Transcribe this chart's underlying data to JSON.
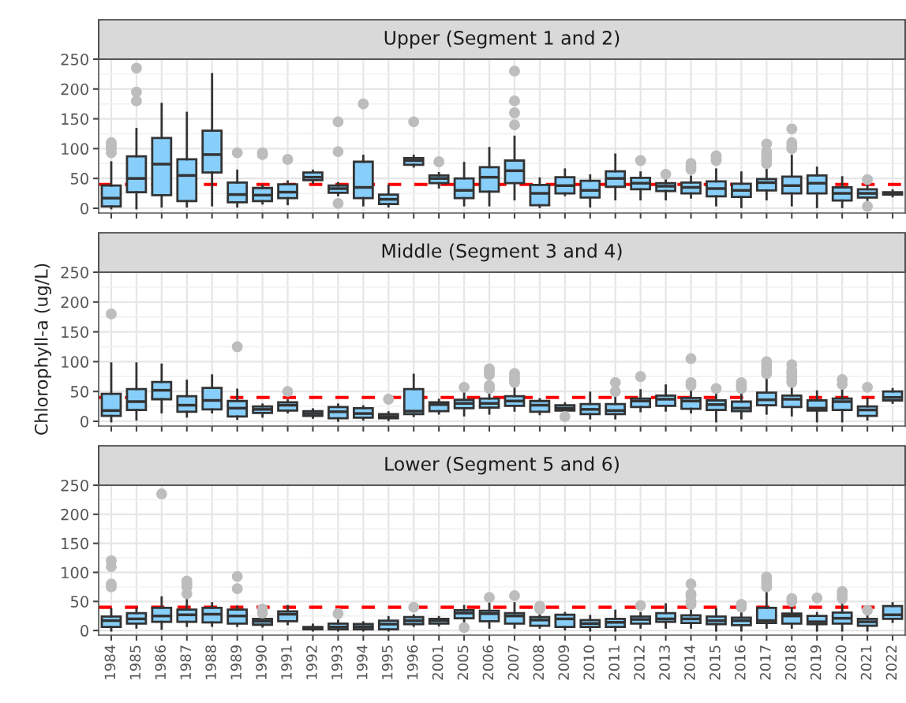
{
  "chart_data": [
    {
      "type": "box",
      "title": "Upper (Segment 1 and 2)",
      "categories": [
        "1984",
        "1985",
        "1986",
        "1987",
        "1988",
        "1989",
        "1990",
        "1991",
        "1992",
        "1993",
        "1994",
        "1995",
        "1996",
        "2001",
        "2005",
        "2006",
        "2007",
        "2008",
        "2009",
        "2010",
        "2011",
        "2012",
        "2013",
        "2014",
        "2015",
        "2016",
        "2017",
        "2018",
        "2019",
        "2020",
        "2021",
        "2022"
      ],
      "ylim": [
        -8,
        250
      ],
      "yticks": [
        0,
        50,
        100,
        150,
        200,
        250
      ],
      "grid": true,
      "tick_labels": "y",
      "ref_lines": [
        {
          "axis": "y",
          "value": 40,
          "label": null,
          "color": "#ff0000",
          "line_style": "dashed"
        }
      ],
      "series": [
        {
          "color": "#87cefa",
          "boxes": [
            {
              "low": 0,
              "q1": 3,
              "median": 17,
              "q3": 38,
              "high": 77,
              "outliers": [
                93,
                100,
                105,
                110
              ]
            },
            {
              "low": 0,
              "q1": 27,
              "median": 50,
              "q3": 87,
              "high": 133,
              "outliers": [
                180,
                195,
                235
              ]
            },
            {
              "low": 3,
              "q1": 22,
              "median": 74,
              "q3": 118,
              "high": 175
            },
            {
              "low": 3,
              "q1": 12,
              "median": 55,
              "q3": 82,
              "high": 160
            },
            {
              "low": 5,
              "q1": 60,
              "median": 90,
              "q3": 130,
              "high": 225
            },
            {
              "low": 3,
              "q1": 10,
              "median": 23,
              "q3": 43,
              "high": 63,
              "outliers": [
                93
              ]
            },
            {
              "low": 8,
              "q1": 12,
              "median": 22,
              "q3": 34,
              "high": 38,
              "outliers": [
                90,
                93
              ]
            },
            {
              "low": 7,
              "q1": 17,
              "median": 27,
              "q3": 40,
              "high": 45,
              "outliers": [
                82
              ]
            },
            {
              "low": 43,
              "q1": 47,
              "median": 52,
              "q3": 60,
              "high": 63
            },
            {
              "low": 22,
              "q1": 26,
              "median": 33,
              "q3": 38,
              "high": 42,
              "outliers": [
                8,
                95,
                145
              ]
            },
            {
              "low": 5,
              "q1": 17,
              "median": 35,
              "q3": 78,
              "high": 88,
              "outliers": [
                175
              ]
            },
            {
              "low": 3,
              "q1": 7,
              "median": 15,
              "q3": 23,
              "high": 38
            },
            {
              "low": 70,
              "q1": 73,
              "median": 80,
              "q3": 84,
              "high": 88,
              "outliers": [
                145
              ]
            },
            {
              "low": 35,
              "q1": 42,
              "median": 50,
              "q3": 55,
              "high": 59,
              "outliers": [
                78
              ]
            },
            {
              "low": 5,
              "q1": 17,
              "median": 30,
              "q3": 50,
              "high": 76
            },
            {
              "low": 5,
              "q1": 28,
              "median": 52,
              "q3": 69,
              "high": 101
            },
            {
              "low": 15,
              "q1": 42,
              "median": 63,
              "q3": 80,
              "high": 120,
              "outliers": [
                140,
                160,
                180,
                230
              ]
            },
            {
              "low": 2,
              "q1": 5,
              "median": 25,
              "q3": 39,
              "high": 50
            },
            {
              "low": 22,
              "q1": 25,
              "median": 38,
              "q3": 52,
              "high": 65
            },
            {
              "low": 3,
              "q1": 18,
              "median": 30,
              "q3": 46,
              "high": 55
            },
            {
              "low": 15,
              "q1": 36,
              "median": 50,
              "q3": 62,
              "high": 90
            },
            {
              "low": 15,
              "q1": 32,
              "median": 42,
              "q3": 51,
              "high": 60,
              "outliers": [
                80
              ]
            },
            {
              "low": 15,
              "q1": 29,
              "median": 37,
              "q3": 42,
              "high": 50,
              "outliers": [
                57
              ]
            },
            {
              "low": 18,
              "q1": 25,
              "median": 35,
              "q3": 43,
              "high": 53,
              "outliers": [
                65,
                70,
                75
              ]
            },
            {
              "low": 5,
              "q1": 20,
              "median": 33,
              "q3": 45,
              "high": 65,
              "outliers": [
                80,
                85,
                88
              ]
            },
            {
              "low": 2,
              "q1": 19,
              "median": 30,
              "q3": 41,
              "high": 60
            },
            {
              "low": 15,
              "q1": 30,
              "median": 43,
              "q3": 49,
              "high": 70,
              "outliers": [
                75,
                80,
                85,
                90,
                95,
                108
              ]
            },
            {
              "low": 5,
              "q1": 25,
              "median": 38,
              "q3": 53,
              "high": 88,
              "outliers": [
                100,
                105,
                110,
                133
              ]
            },
            {
              "low": 2,
              "q1": 25,
              "median": 42,
              "q3": 55,
              "high": 68
            },
            {
              "low": 2,
              "q1": 13,
              "median": 25,
              "q3": 35,
              "high": 52
            },
            {
              "low": 14,
              "q1": 18,
              "median": 25,
              "q3": 32,
              "high": 40,
              "outliers": [
                3,
                48
              ]
            },
            {
              "low": 20,
              "q1": 23,
              "median": 25,
              "q3": 27,
              "high": 30
            }
          ]
        }
      ]
    },
    {
      "type": "box",
      "title": "Middle (Segment 3 and 4)",
      "ylabel": "Chlorophyll-a (ug/L)",
      "categories": [
        "1984",
        "1985",
        "1986",
        "1987",
        "1988",
        "1989",
        "1990",
        "1991",
        "1992",
        "1993",
        "1994",
        "1995",
        "1996",
        "2001",
        "2005",
        "2006",
        "2007",
        "2008",
        "2009",
        "2010",
        "2011",
        "2012",
        "2013",
        "2014",
        "2015",
        "2016",
        "2017",
        "2018",
        "2019",
        "2020",
        "2021",
        "2022"
      ],
      "ylim": [
        -8,
        250
      ],
      "yticks": [
        0,
        50,
        100,
        150,
        200,
        250
      ],
      "grid": true,
      "tick_labels": "y",
      "ref_lines": [
        {
          "axis": "y",
          "value": 40,
          "label": null,
          "color": "#ff0000",
          "line_style": "dashed"
        }
      ],
      "series": [
        {
          "color": "#87cefa",
          "boxes": [
            {
              "low": 0,
              "q1": 9,
              "median": 18,
              "q3": 46,
              "high": 97,
              "outliers": [
                180
              ]
            },
            {
              "low": 3,
              "q1": 19,
              "median": 33,
              "q3": 54,
              "high": 97
            },
            {
              "low": 15,
              "q1": 37,
              "median": 52,
              "q3": 66,
              "high": 95
            },
            {
              "low": 8,
              "q1": 16,
              "median": 27,
              "q3": 42,
              "high": 68
            },
            {
              "low": 15,
              "q1": 20,
              "median": 35,
              "q3": 56,
              "high": 77
            },
            {
              "low": 4,
              "q1": 8,
              "median": 22,
              "q3": 34,
              "high": 53,
              "outliers": [
                125
              ]
            },
            {
              "low": 8,
              "q1": 14,
              "median": 20,
              "q3": 25,
              "high": 28
            },
            {
              "low": 15,
              "q1": 18,
              "median": 27,
              "q3": 32,
              "high": 35,
              "outliers": [
                50
              ]
            },
            {
              "low": 6,
              "q1": 9,
              "median": 13,
              "q3": 17,
              "high": 20
            },
            {
              "low": 1,
              "q1": 5,
              "median": 16,
              "q3": 24,
              "high": 28
            },
            {
              "low": 3,
              "q1": 6,
              "median": 13,
              "q3": 22,
              "high": 25
            },
            {
              "low": 2,
              "q1": 5,
              "median": 8,
              "q3": 12,
              "high": 15,
              "outliers": [
                37
              ]
            },
            {
              "low": 9,
              "q1": 12,
              "median": 17,
              "q3": 54,
              "high": 78
            },
            {
              "low": 13,
              "q1": 17,
              "median": 28,
              "q3": 32,
              "high": 36
            },
            {
              "low": 10,
              "q1": 22,
              "median": 30,
              "q3": 36,
              "high": 52,
              "outliers": [
                57
              ]
            },
            {
              "low": 13,
              "q1": 23,
              "median": 30,
              "q3": 38,
              "high": 50,
              "outliers": [
                55,
                60,
                78,
                83,
                88
              ]
            },
            {
              "low": 18,
              "q1": 26,
              "median": 34,
              "q3": 42,
              "high": 58,
              "outliers": [
                65,
                70,
                75,
                80
              ]
            },
            {
              "low": 12,
              "q1": 16,
              "median": 27,
              "q3": 34,
              "high": 37
            },
            {
              "low": 15,
              "q1": 18,
              "median": 22,
              "q3": 27,
              "high": 30,
              "outliers": [
                8
              ]
            },
            {
              "low": 5,
              "q1": 12,
              "median": 20,
              "q3": 29,
              "high": 48
            },
            {
              "low": 5,
              "q1": 12,
              "median": 18,
              "q3": 29,
              "high": 47,
              "outliers": [
                50,
                65
              ]
            },
            {
              "low": 17,
              "q1": 24,
              "median": 34,
              "q3": 38,
              "high": 52,
              "outliers": [
                75
              ]
            },
            {
              "low": 18,
              "q1": 26,
              "median": 37,
              "q3": 43,
              "high": 60
            },
            {
              "low": 15,
              "q1": 21,
              "median": 34,
              "q3": 39,
              "high": 52,
              "outliers": [
                60,
                65,
                105
              ]
            },
            {
              "low": 0,
              "q1": 19,
              "median": 28,
              "q3": 35,
              "high": 48,
              "outliers": [
                55
              ]
            },
            {
              "low": 5,
              "q1": 17,
              "median": 22,
              "q3": 33,
              "high": 48,
              "outliers": [
                55,
                60,
                65
              ]
            },
            {
              "low": 13,
              "q1": 27,
              "median": 36,
              "q3": 48,
              "high": 75,
              "outliers": [
                80,
                85,
                90,
                95,
                100
              ]
            },
            {
              "low": 10,
              "q1": 24,
              "median": 37,
              "q3": 43,
              "high": 58,
              "outliers": [
                65,
                70,
                75,
                80,
                85,
                95
              ]
            },
            {
              "low": 0,
              "q1": 18,
              "median": 22,
              "q3": 35,
              "high": 50
            },
            {
              "low": 0,
              "q1": 19,
              "median": 33,
              "q3": 38,
              "high": 58,
              "outliers": [
                62,
                70
              ]
            },
            {
              "low": 3,
              "q1": 9,
              "median": 19,
              "q3": 25,
              "high": 38,
              "outliers": [
                57
              ]
            },
            {
              "low": 31,
              "q1": 35,
              "median": 40,
              "q3": 50,
              "high": 54
            }
          ]
        }
      ]
    },
    {
      "type": "box",
      "title": "Lower (Segment 5 and 6)",
      "categories": [
        "1984",
        "1985",
        "1986",
        "1987",
        "1988",
        "1989",
        "1990",
        "1991",
        "1992",
        "1993",
        "1994",
        "1995",
        "1996",
        "2001",
        "2005",
        "2006",
        "2007",
        "2008",
        "2009",
        "2010",
        "2011",
        "2012",
        "2013",
        "2014",
        "2015",
        "2016",
        "2017",
        "2018",
        "2019",
        "2020",
        "2021",
        "2022"
      ],
      "ylim": [
        -8,
        250
      ],
      "yticks": [
        0,
        50,
        100,
        150,
        200,
        250
      ],
      "grid": true,
      "ref_lines": [
        {
          "axis": "y",
          "value": 40,
          "label": null,
          "color": "#ff0000",
          "line_style": "dashed"
        }
      ],
      "series": [
        {
          "color": "#87cefa",
          "boxes": [
            {
              "low": 0,
              "q1": 6,
              "median": 17,
              "q3": 24,
              "high": 37,
              "outliers": [
                75,
                80,
                110,
                120
              ]
            },
            {
              "low": 5,
              "q1": 12,
              "median": 20,
              "q3": 30,
              "high": 38
            },
            {
              "low": 3,
              "q1": 15,
              "median": 25,
              "q3": 39,
              "high": 57,
              "outliers": [
                235
              ]
            },
            {
              "low": 8,
              "q1": 15,
              "median": 27,
              "q3": 36,
              "high": 60,
              "outliers": [
                63,
                75,
                80,
                85
              ]
            },
            {
              "low": 8,
              "q1": 14,
              "median": 28,
              "q3": 39,
              "high": 47
            },
            {
              "low": 8,
              "q1": 12,
              "median": 25,
              "q3": 36,
              "high": 41,
              "outliers": [
                72,
                93
              ]
            },
            {
              "low": 7,
              "q1": 10,
              "median": 16,
              "q3": 20,
              "high": 23,
              "outliers": [
                30,
                37
              ]
            },
            {
              "low": 11,
              "q1": 16,
              "median": 28,
              "q3": 33,
              "high": 42
            },
            {
              "low": 0,
              "q1": 2,
              "median": 4,
              "q3": 6,
              "high": 10
            },
            {
              "low": 0,
              "q1": 2,
              "median": 6,
              "q3": 12,
              "high": 17,
              "outliers": [
                29
              ]
            },
            {
              "low": 0,
              "q1": 2,
              "median": 6,
              "q3": 11,
              "high": 14
            },
            {
              "low": 0,
              "q1": 2,
              "median": 11,
              "q3": 17,
              "high": 23
            },
            {
              "low": 8,
              "q1": 11,
              "median": 17,
              "q3": 23,
              "high": 26,
              "outliers": [
                40
              ]
            },
            {
              "low": 9,
              "q1": 12,
              "median": 17,
              "q3": 20,
              "high": 23
            },
            {
              "low": 10,
              "q1": 21,
              "median": 30,
              "q3": 35,
              "high": 42,
              "outliers": [
                5
              ]
            },
            {
              "low": 5,
              "q1": 16,
              "median": 29,
              "q3": 34,
              "high": 53,
              "outliers": [
                57
              ]
            },
            {
              "low": 5,
              "q1": 12,
              "median": 25,
              "q3": 30,
              "high": 47,
              "outliers": [
                60
              ]
            },
            {
              "low": 5,
              "q1": 8,
              "median": 18,
              "q3": 23,
              "high": 27,
              "outliers": [
                37,
                42
              ]
            },
            {
              "low": 2,
              "q1": 6,
              "median": 20,
              "q3": 27,
              "high": 30
            },
            {
              "low": 0,
              "q1": 6,
              "median": 12,
              "q3": 18,
              "high": 25
            },
            {
              "low": 0,
              "q1": 6,
              "median": 14,
              "q3": 20,
              "high": 34
            },
            {
              "low": 5,
              "q1": 12,
              "median": 19,
              "q3": 24,
              "high": 30,
              "outliers": [
                43
              ]
            },
            {
              "low": 5,
              "q1": 15,
              "median": 20,
              "q3": 30,
              "high": 45
            },
            {
              "low": 5,
              "q1": 13,
              "median": 20,
              "q3": 26,
              "high": 35,
              "outliers": [
                45,
                50,
                60,
                63,
                80
              ]
            },
            {
              "low": 0,
              "q1": 11,
              "median": 17,
              "q3": 24,
              "high": 37
            },
            {
              "low": 0,
              "q1": 9,
              "median": 17,
              "q3": 22,
              "high": 35,
              "outliers": [
                40,
                45
              ]
            },
            {
              "low": 5,
              "q1": 13,
              "median": 17,
              "q3": 39,
              "high": 68,
              "outliers": [
                75,
                80,
                85,
                92
              ]
            },
            {
              "low": 5,
              "q1": 12,
              "median": 25,
              "q3": 29,
              "high": 43,
              "outliers": [
                50,
                55
              ]
            },
            {
              "low": 0,
              "q1": 11,
              "median": 15,
              "q3": 25,
              "high": 30,
              "outliers": [
                56
              ]
            },
            {
              "low": 0,
              "q1": 12,
              "median": 21,
              "q3": 31,
              "high": 45,
              "outliers": [
                55,
                60,
                67
              ]
            },
            {
              "low": 0,
              "q1": 8,
              "median": 15,
              "q3": 20,
              "high": 30,
              "outliers": [
                35
              ]
            },
            {
              "low": 15,
              "q1": 20,
              "median": 27,
              "q3": 42,
              "high": 47
            }
          ]
        }
      ]
    }
  ]
}
